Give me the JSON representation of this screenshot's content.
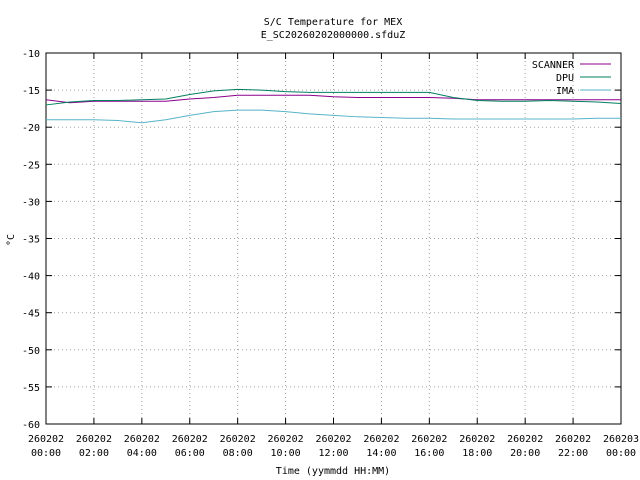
{
  "chart_data": {
    "type": "line",
    "title": "S/C Temperature for MEX",
    "subtitle": "E_SC20260202000000.sfduZ",
    "x_label": "Time (yymmdd HH:MM)",
    "y_label": "°C",
    "x": [
      0,
      1,
      2,
      3,
      4,
      5,
      6,
      7,
      8,
      9,
      10,
      11,
      12,
      13,
      14,
      15,
      16,
      17,
      18,
      19,
      20,
      21,
      22,
      23,
      24
    ],
    "series": [
      {
        "name": "SCANNER",
        "color": "#8b008b",
        "values": [
          -16.3,
          -16.7,
          -16.5,
          -16.5,
          -16.5,
          -16.5,
          -16.2,
          -16.0,
          -15.7,
          -15.7,
          -15.7,
          -15.7,
          -15.9,
          -16.0,
          -16.0,
          -16.0,
          -16.0,
          -16.1,
          -16.3,
          -16.3,
          -16.3,
          -16.3,
          -16.3,
          -16.3,
          -16.3
        ]
      },
      {
        "name": "DPU",
        "color": "#008060",
        "values": [
          -17.0,
          -16.6,
          -16.4,
          -16.4,
          -16.3,
          -16.2,
          -15.6,
          -15.1,
          -14.9,
          -15.0,
          -15.2,
          -15.3,
          -15.3,
          -15.3,
          -15.3,
          -15.3,
          -15.3,
          -16.0,
          -16.4,
          -16.5,
          -16.5,
          -16.4,
          -16.5,
          -16.6,
          -16.8
        ]
      },
      {
        "name": "IMA",
        "color": "#56b4c9",
        "values": [
          -19.0,
          -19.0,
          -19.0,
          -19.1,
          -19.4,
          -19.0,
          -18.4,
          -17.9,
          -17.7,
          -17.7,
          -17.9,
          -18.2,
          -18.4,
          -18.6,
          -18.7,
          -18.8,
          -18.8,
          -18.9,
          -18.9,
          -18.9,
          -18.9,
          -18.9,
          -18.9,
          -18.8,
          -18.8
        ]
      }
    ],
    "xlim": [
      0,
      24
    ],
    "xticks": [
      {
        "value": 0,
        "label": "260202\n00:00"
      },
      {
        "value": 2,
        "label": "260202\n02:00"
      },
      {
        "value": 4,
        "label": "260202\n04:00"
      },
      {
        "value": 6,
        "label": "260202\n06:00"
      },
      {
        "value": 8,
        "label": "260202\n08:00"
      },
      {
        "value": 10,
        "label": "260202\n10:00"
      },
      {
        "value": 12,
        "label": "260202\n12:00"
      },
      {
        "value": 14,
        "label": "260202\n14:00"
      },
      {
        "value": 16,
        "label": "260202\n16:00"
      },
      {
        "value": 18,
        "label": "260202\n18:00"
      },
      {
        "value": 20,
        "label": "260202\n20:00"
      },
      {
        "value": 22,
        "label": "260202\n22:00"
      },
      {
        "value": 24,
        "label": "260203\n00:00"
      }
    ],
    "ylim": [
      -60,
      -10
    ],
    "yticks": [
      -60,
      -55,
      -50,
      -45,
      -40,
      -35,
      -30,
      -25,
      -20,
      -15,
      -10
    ],
    "grid": true,
    "legend": "top-right"
  }
}
